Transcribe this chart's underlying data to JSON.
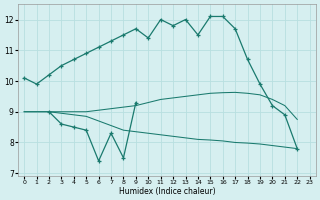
{
  "xlabel": "Humidex (Indice chaleur)",
  "background_color": "#d6eff0",
  "grid_color": "#b8dfe0",
  "line_color": "#1a7a6e",
  "upper_x": [
    0,
    1,
    2,
    3,
    4,
    5,
    6,
    7,
    8,
    9,
    10,
    11,
    12,
    13,
    14,
    15,
    16,
    17,
    18,
    19,
    20,
    21,
    22
  ],
  "upper_y": [
    10.1,
    9.9,
    10.2,
    10.5,
    10.7,
    10.9,
    11.1,
    11.3,
    11.5,
    11.7,
    11.4,
    12.0,
    11.8,
    12.0,
    11.5,
    12.1,
    12.1,
    11.7,
    10.7,
    9.9,
    9.2,
    8.9,
    7.8
  ],
  "lower_x": [
    2,
    3,
    4,
    5,
    6,
    7,
    8,
    9
  ],
  "lower_y": [
    9.0,
    8.6,
    8.5,
    8.4,
    7.4,
    8.3,
    7.5,
    9.3
  ],
  "mid_x": [
    0,
    1,
    2,
    3,
    4,
    5,
    6,
    7,
    8,
    9,
    10,
    11,
    12,
    13,
    14,
    15,
    16,
    17,
    18,
    19,
    20,
    21,
    22
  ],
  "mid_y": [
    9.0,
    9.0,
    9.0,
    9.0,
    9.0,
    9.0,
    9.05,
    9.1,
    9.15,
    9.2,
    9.3,
    9.4,
    9.45,
    9.5,
    9.55,
    9.6,
    9.62,
    9.63,
    9.6,
    9.55,
    9.4,
    9.2,
    8.75
  ],
  "bot_x": [
    0,
    1,
    2,
    3,
    4,
    5,
    6,
    7,
    8,
    9,
    10,
    11,
    12,
    13,
    14,
    15,
    16,
    17,
    18,
    19,
    20,
    21,
    22
  ],
  "bot_y": [
    9.0,
    9.0,
    9.0,
    8.95,
    8.9,
    8.85,
    8.7,
    8.55,
    8.4,
    8.35,
    8.3,
    8.25,
    8.2,
    8.15,
    8.1,
    8.08,
    8.05,
    8.0,
    7.98,
    7.95,
    7.9,
    7.85,
    7.8
  ],
  "ylim": [
    6.9,
    12.5
  ],
  "yticks": [
    7,
    8,
    9,
    10,
    11,
    12
  ],
  "xlim": [
    -0.5,
    23.5
  ],
  "xticks": [
    0,
    1,
    2,
    3,
    4,
    5,
    6,
    7,
    8,
    9,
    10,
    11,
    12,
    13,
    14,
    15,
    16,
    17,
    18,
    19,
    20,
    21,
    22,
    23
  ]
}
